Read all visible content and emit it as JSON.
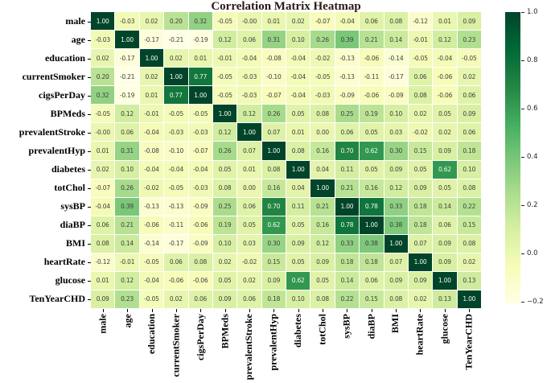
{
  "title": "Correlation Matrix Heatmap",
  "colors": {
    "title": "#2d1a16",
    "axis_label": "#000000",
    "annotation_dark": "#404040",
    "annotation_light": "#f7f7f2",
    "colorbar_tick": "#262626",
    "background": "#ffffff",
    "cell_gap": "#ffffff"
  },
  "chart_data": {
    "type": "heatmap",
    "title": "Correlation Matrix Heatmap",
    "colormap": "YlGn",
    "vmin": -0.21,
    "vmax": 1.0,
    "grid": "white 1px cell borders",
    "legend_position": "right colorbar",
    "categories": [
      "male",
      "age",
      "education",
      "currentSmoker",
      "cigsPerDay",
      "BPMeds",
      "prevalentStroke",
      "prevalentHyp",
      "diabetes",
      "totChol",
      "sysBP",
      "diaBP",
      "BMI",
      "heartRate",
      "glucose",
      "TenYearCHD"
    ],
    "matrix": [
      [
        "1.00",
        "-0.03",
        "0.02",
        "0.20",
        "0.32",
        "-0.05",
        "-0.00",
        "0.01",
        "0.02",
        "-0.07",
        "-0.04",
        "0.06",
        "0.08",
        "-0.12",
        "0.01",
        "0.09"
      ],
      [
        "-0.03",
        "1.00",
        "-0.17",
        "-0.21",
        "-0.19",
        "0.12",
        "0.06",
        "0.31",
        "0.10",
        "0.26",
        "0.39",
        "0.21",
        "0.14",
        "-0.01",
        "0.12",
        "0.23"
      ],
      [
        "0.02",
        "-0.17",
        "1.00",
        "0.02",
        "0.01",
        "-0.01",
        "-0.04",
        "-0.08",
        "-0.04",
        "-0.02",
        "-0.13",
        "-0.06",
        "-0.14",
        "-0.05",
        "-0.04",
        "-0.05"
      ],
      [
        "0.20",
        "-0.21",
        "0.02",
        "1.00",
        "0.77",
        "-0.05",
        "-0.03",
        "-0.10",
        "-0.04",
        "-0.05",
        "-0.13",
        "-0.11",
        "-0.17",
        "0.06",
        "-0.06",
        "0.02"
      ],
      [
        "0.32",
        "-0.19",
        "0.01",
        "0.77",
        "1.00",
        "-0.05",
        "-0.03",
        "-0.07",
        "-0.04",
        "-0.03",
        "-0.09",
        "-0.06",
        "-0.09",
        "0.08",
        "-0.06",
        "0.06"
      ],
      [
        "-0.05",
        "0.12",
        "-0.01",
        "-0.05",
        "-0.05",
        "1.00",
        "0.12",
        "0.26",
        "0.05",
        "0.08",
        "0.25",
        "0.19",
        "0.10",
        "0.02",
        "0.05",
        "0.09"
      ],
      [
        "-0.00",
        "0.06",
        "-0.04",
        "-0.03",
        "-0.03",
        "0.12",
        "1.00",
        "0.07",
        "0.01",
        "0.00",
        "0.06",
        "0.05",
        "0.03",
        "-0.02",
        "0.02",
        "0.06"
      ],
      [
        "0.01",
        "0.31",
        "-0.08",
        "-0.10",
        "-0.07",
        "0.26",
        "0.07",
        "1.00",
        "0.08",
        "0.16",
        "0.70",
        "0.62",
        "0.30",
        "0.15",
        "0.09",
        "0.18"
      ],
      [
        "0.02",
        "0.10",
        "-0.04",
        "-0.04",
        "-0.04",
        "0.05",
        "0.01",
        "0.08",
        "1.00",
        "0.04",
        "0.11",
        "0.05",
        "0.09",
        "0.05",
        "0.62",
        "0.10"
      ],
      [
        "-0.07",
        "0.26",
        "-0.02",
        "-0.05",
        "-0.03",
        "0.08",
        "0.00",
        "0.16",
        "0.04",
        "1.00",
        "0.21",
        "0.16",
        "0.12",
        "0.09",
        "0.05",
        "0.08"
      ],
      [
        "-0.04",
        "0.39",
        "-0.13",
        "-0.13",
        "-0.09",
        "0.25",
        "0.06",
        "0.70",
        "0.11",
        "0.21",
        "1.00",
        "0.78",
        "0.33",
        "0.18",
        "0.14",
        "0.22"
      ],
      [
        "0.06",
        "0.21",
        "-0.06",
        "-0.11",
        "-0.06",
        "0.19",
        "0.05",
        "0.62",
        "0.05",
        "0.16",
        "0.78",
        "1.00",
        "0.38",
        "0.18",
        "0.06",
        "0.15"
      ],
      [
        "0.08",
        "0.14",
        "-0.14",
        "-0.17",
        "-0.09",
        "0.10",
        "0.03",
        "0.30",
        "0.09",
        "0.12",
        "0.33",
        "0.38",
        "1.00",
        "0.07",
        "0.09",
        "0.08"
      ],
      [
        "-0.12",
        "-0.01",
        "-0.05",
        "0.06",
        "0.08",
        "0.02",
        "-0.02",
        "0.15",
        "0.05",
        "0.09",
        "0.18",
        "0.18",
        "0.07",
        "1.00",
        "0.09",
        "0.02"
      ],
      [
        "0.01",
        "0.12",
        "-0.04",
        "-0.06",
        "-0.06",
        "0.05",
        "0.02",
        "0.09",
        "0.62",
        "0.05",
        "0.14",
        "0.06",
        "0.09",
        "0.09",
        "1.00",
        "0.13"
      ],
      [
        "0.09",
        "0.23",
        "-0.05",
        "0.02",
        "0.06",
        "0.09",
        "0.06",
        "0.18",
        "0.10",
        "0.08",
        "0.22",
        "0.15",
        "0.08",
        "0.02",
        "0.13",
        "1.00"
      ]
    ],
    "colorbar_ticks": [
      {
        "value": 1.0,
        "label": "1.0"
      },
      {
        "value": 0.8,
        "label": "0.8"
      },
      {
        "value": 0.6,
        "label": "0.6"
      },
      {
        "value": 0.4,
        "label": "0.4"
      },
      {
        "value": 0.2,
        "label": "0.2"
      },
      {
        "value": 0.0,
        "label": "0.0"
      },
      {
        "value": -0.2,
        "label": "−0.2"
      }
    ],
    "colormap_stops": [
      {
        "t": 0.0,
        "color": "#ffffe5"
      },
      {
        "t": 0.125,
        "color": "#f7fcb9"
      },
      {
        "t": 0.25,
        "color": "#d9f0a3"
      },
      {
        "t": 0.375,
        "color": "#addd8e"
      },
      {
        "t": 0.5,
        "color": "#78c679"
      },
      {
        "t": 0.625,
        "color": "#41ab5d"
      },
      {
        "t": 0.75,
        "color": "#238443"
      },
      {
        "t": 0.875,
        "color": "#006837"
      },
      {
        "t": 1.0,
        "color": "#004529"
      }
    ]
  }
}
